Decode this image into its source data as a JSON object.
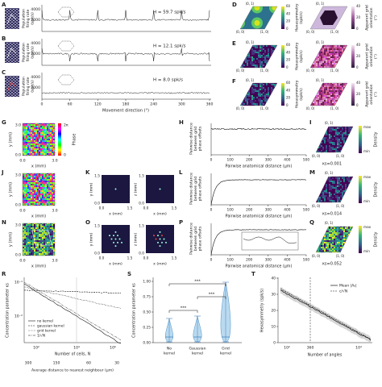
{
  "panel_labels": [
    "A",
    "B",
    "C",
    "D",
    "E",
    "F",
    "G",
    "H",
    "I",
    "J",
    "K",
    "L",
    "M",
    "N",
    "O",
    "P",
    "Q",
    "R",
    "S",
    "T"
  ],
  "A": {
    "ylabel": [
      "Population",
      "firing rate",
      "(spk/s)"
    ],
    "yticks": [
      "2000",
      "4000"
    ],
    "annotation": "H = 59.7 spk/s"
  },
  "B": {
    "ylabel": [
      "Population",
      "firing rate",
      "(spk/s)"
    ],
    "yticks": [
      "2000",
      "4000"
    ],
    "annotation": "H = 12.1 spk/s"
  },
  "C": {
    "ylabel": [
      "Population",
      "firing rate",
      "(spk/s)"
    ],
    "yticks": [
      "2000",
      "4000"
    ],
    "annotation": "H = 8.0 spk/s",
    "xticks": [
      "0",
      "60",
      "120",
      "180",
      "240",
      "300",
      "360"
    ],
    "xlabel": "Movement direction (°)"
  },
  "D": {
    "corners": [
      "(0, 1)",
      "(0, 0)",
      "(1, 0)"
    ],
    "hex_label": [
      "Hexasymmetry",
      "(spk/s)"
    ],
    "hex_ticks": [
      "0",
      "20",
      "40",
      "60"
    ],
    "orient_label": [
      "Apparent grid",
      "orientation",
      "(°)"
    ],
    "orient_ticks": [
      "0",
      "20",
      "40"
    ]
  },
  "E": {
    "corners": [
      "(0, 1)",
      "(0, 0)",
      "(1, 0)"
    ],
    "hex_label": [
      "Hexasymmetry",
      "(spk/s)"
    ],
    "hex_ticks": [
      "0",
      "20",
      "40",
      "60"
    ],
    "orient_label": [
      "Apparent grid",
      "orientation",
      "(°)"
    ],
    "orient_ticks": [
      "0",
      "20",
      "40"
    ]
  },
  "F": {
    "corners": [
      "(0, 1)",
      "(0, 0)",
      "(1, 0)"
    ],
    "hex_label": [
      "Hexasymmetry",
      "(spk/s)"
    ],
    "hex_ticks": [
      "0",
      "20",
      "40",
      "60"
    ],
    "orient_label": [
      "Apparent grid",
      "orientation",
      "(°)"
    ],
    "orient_ticks": [
      "0",
      "20",
      "40"
    ]
  },
  "G": {
    "ylabel": "y (mm)",
    "xlabel": "x (mm)",
    "ticks": [
      "0.0",
      "3.0"
    ],
    "cbar_label": "Phase",
    "cbar_ticks": [
      "0",
      "2π"
    ]
  },
  "J": {
    "ylabel": "y (mm)",
    "xlabel": "x (mm)",
    "ticks": [
      "0.0",
      "3.0"
    ]
  },
  "N": {
    "ylabel": "y (mm)",
    "xlabel": "x (mm)",
    "ticks": [
      "0.0",
      "3.0"
    ]
  },
  "K": {
    "ylabels": [
      "y (mm)",
      "z (mm)"
    ],
    "xlabel": "x (mm)",
    "ticks": [
      "0.0",
      "1.5"
    ]
  },
  "O": {
    "ylabels": [
      "y (mm)",
      "z (mm)"
    ],
    "xlabel": "x (mm)",
    "ticks": [
      "0.0",
      "1.5"
    ]
  },
  "H": {
    "ylabel": [
      "Pairwise distance",
      "between grid",
      "phase offsets"
    ],
    "xlabel": "Pairwise anatomical distance (μm)",
    "xticks": [
      "0",
      "100",
      "200",
      "300",
      "400",
      "500"
    ]
  },
  "L": {
    "ylabel": [
      "Pairwise distance",
      "between grid",
      "phase offsets"
    ],
    "xlabel": "Pairwise anatomical distance (μm)",
    "xticks": [
      "0",
      "100",
      "200",
      "300",
      "400",
      "500"
    ]
  },
  "P": {
    "ylabel": [
      "Pairwise distance",
      "between grid",
      "phase offsets"
    ],
    "xlabel": "Pairwise anatomical distance (μm)",
    "xticks": [
      "0",
      "100",
      "200",
      "300",
      "400",
      "500"
    ]
  },
  "I": {
    "corners": [
      "(0, 1)",
      "(0, 0)",
      "(1, 0)"
    ],
    "cbar_label": "Density",
    "cbar_ticks": [
      "min",
      "max"
    ],
    "kappa": "κs=0.001"
  },
  "M": {
    "corners": [
      "(0, 1)",
      "(0, 0)",
      "(1, 0)"
    ],
    "cbar_label": "Density",
    "cbar_ticks": [
      "min",
      "max"
    ],
    "kappa": "κs=0.014"
  },
  "Q": {
    "corners": [
      "(0, 1)",
      "(0, 0)",
      "(1, 0)"
    ],
    "cbar_label": "Density",
    "cbar_ticks": [
      "min",
      "max"
    ],
    "kappa": "κs=0.052"
  },
  "R": {
    "ylabel": "Concentration parameter κs",
    "yticks": [
      "10⁻¹",
      "10⁻²"
    ],
    "xticks": [
      "10²",
      "10⁴",
      "10⁶"
    ],
    "xlabel": "Number of cells, N",
    "x2ticks": [
      "300",
      "150",
      "60",
      "30"
    ],
    "x2label": "Average distance to nearest neighbour (μm)",
    "legend": [
      "no kernel",
      "gaussian kernel",
      "grid kernel",
      "1/√N"
    ]
  },
  "S": {
    "ylabel": "Concentration parameter κs",
    "yticks": [
      "0.00",
      "0.25",
      "0.50",
      "0.75",
      "1.00"
    ],
    "categories": [
      [
        "No",
        "kernel"
      ],
      [
        "Gaussian",
        "kernel"
      ],
      [
        "Grid",
        "kernel"
      ]
    ],
    "significance": [
      "***",
      "***",
      "***"
    ]
  },
  "T": {
    "ylabel": "Hexasymmetry (spk/s)",
    "yticks": [
      "0",
      "10",
      "20",
      "30",
      "40"
    ],
    "xticks": [
      "10²",
      "10⁴"
    ],
    "vline_label": "360",
    "xlabel": "Number of angles",
    "legend": [
      "Mean |A₆|",
      "c/√N"
    ]
  }
}
